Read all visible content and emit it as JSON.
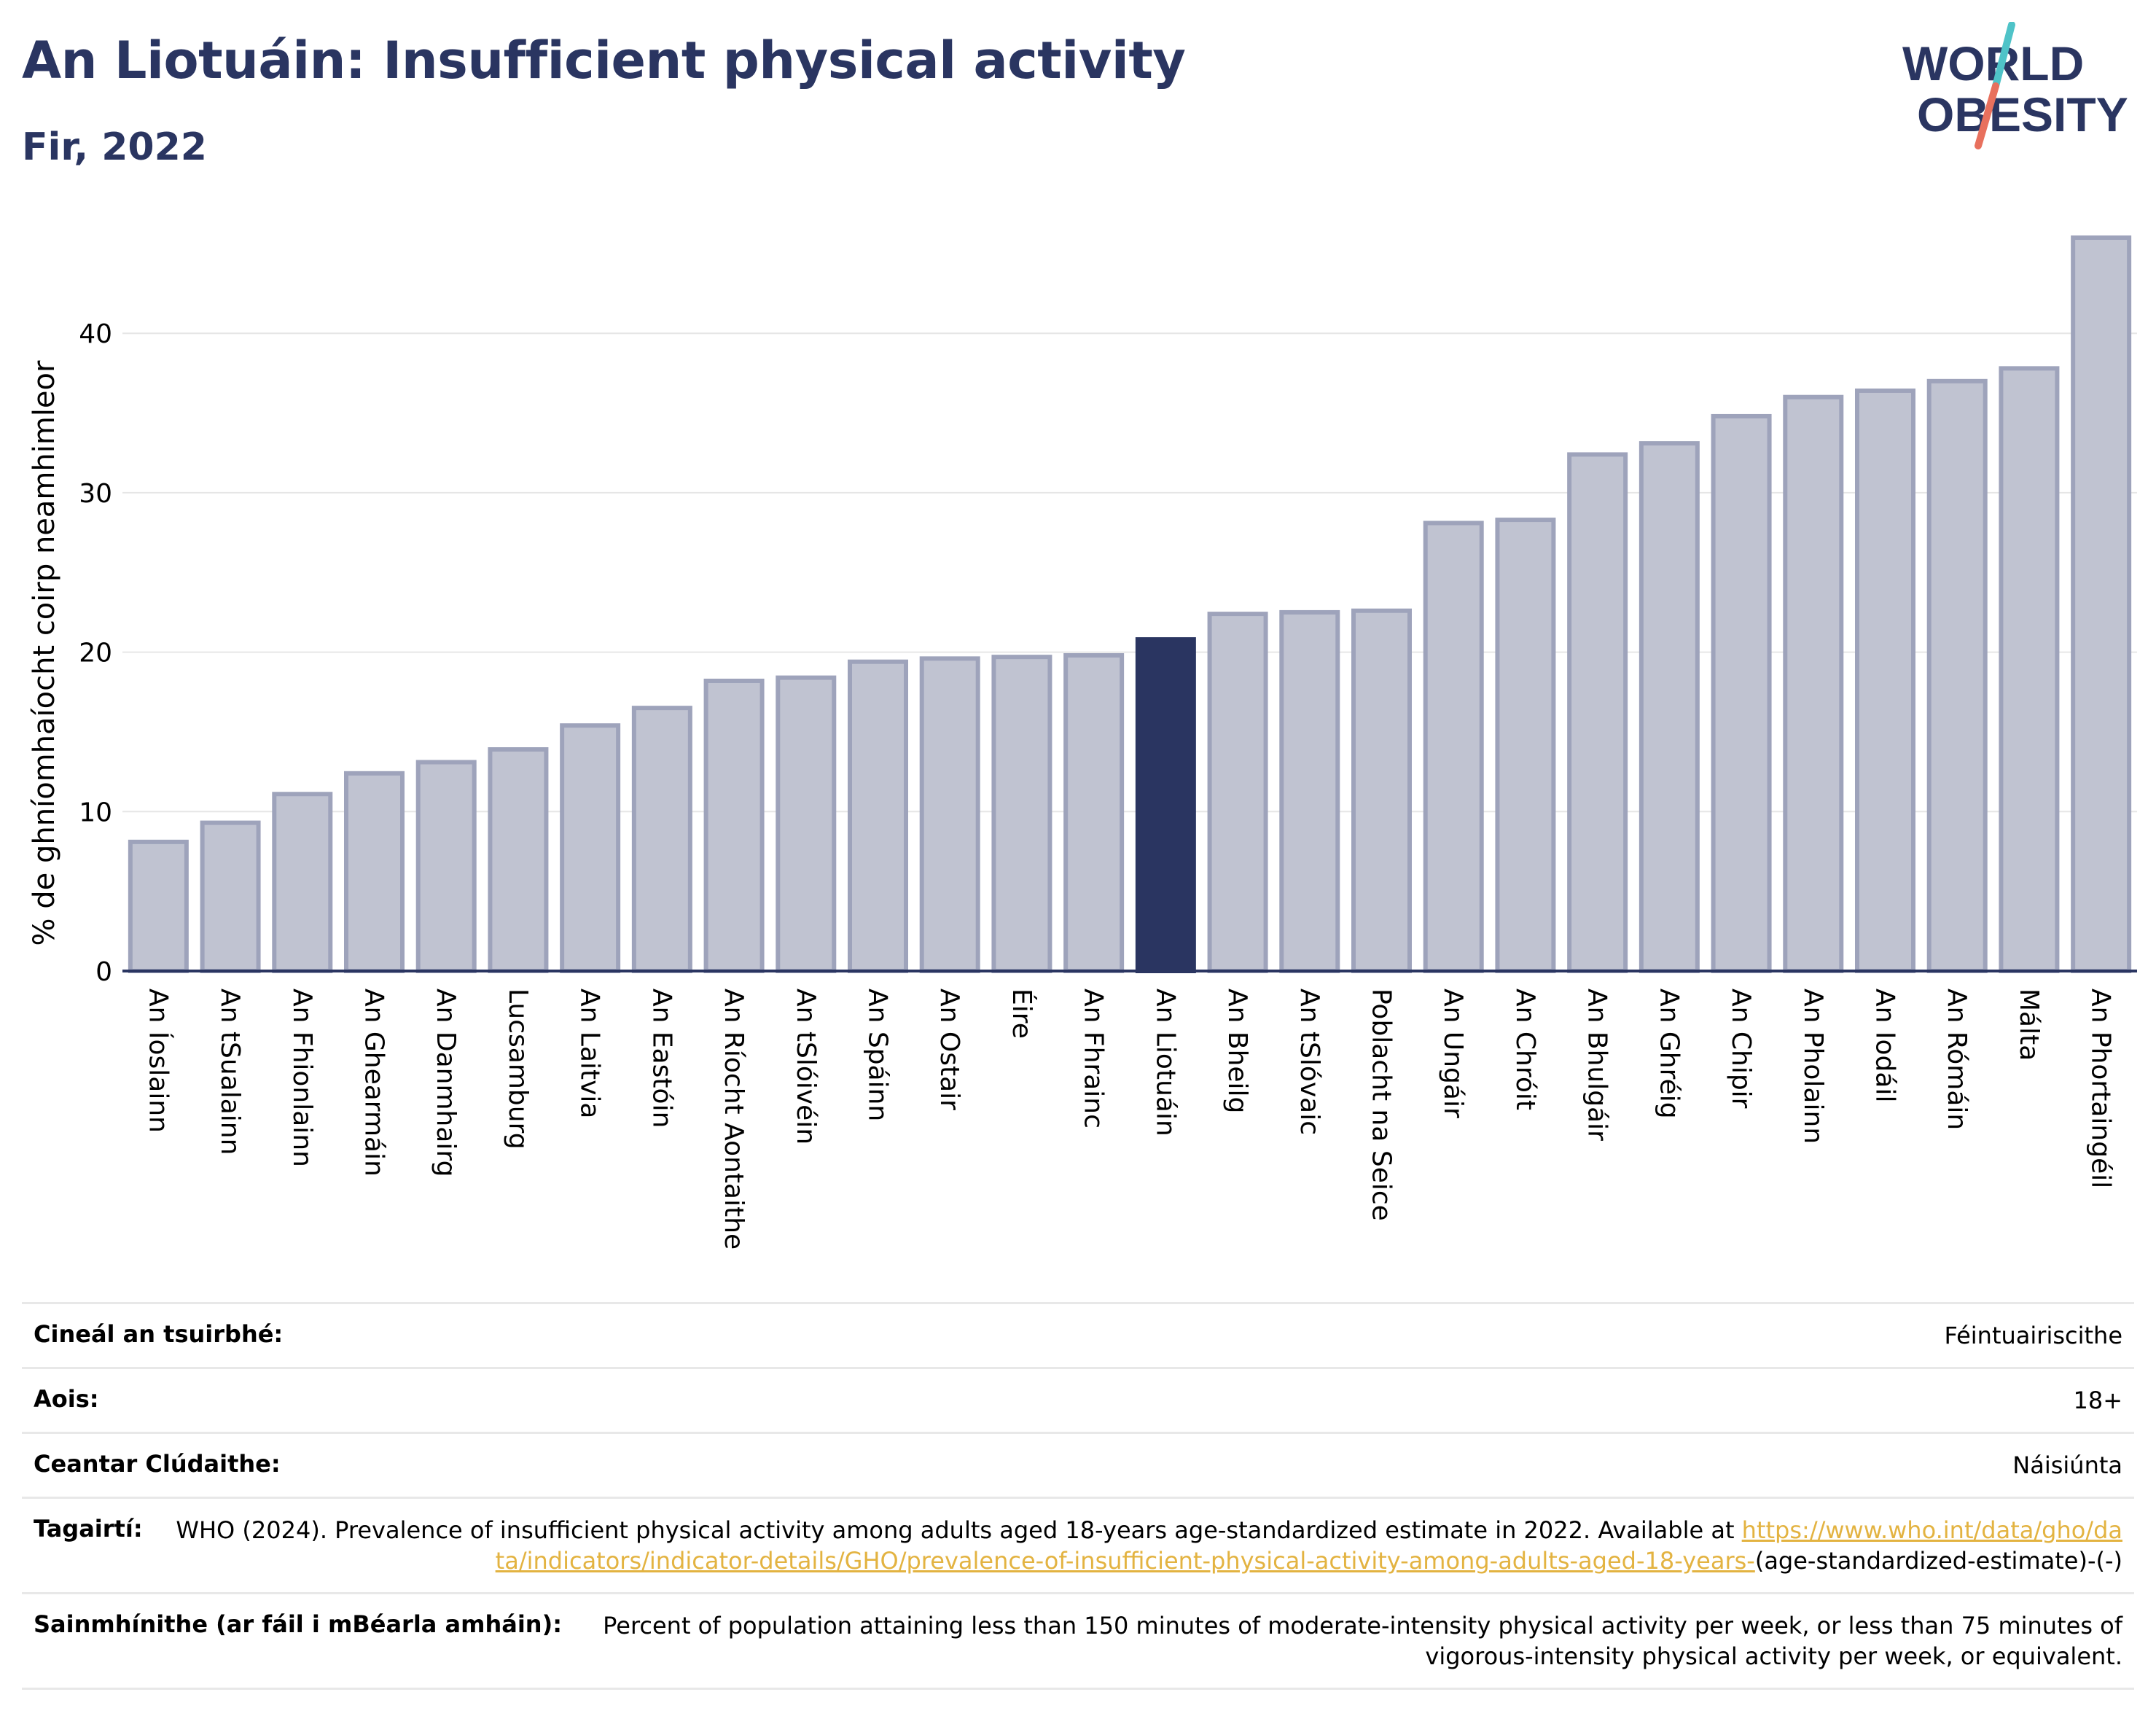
{
  "header": {
    "title": "An Liotuáin: Insufficient physical activity",
    "subtitle": "Fir, 2022"
  },
  "logo": {
    "line1": "WORLD",
    "line2": "OBESITY",
    "colors": [
      "#2a3561",
      "#4fc3c8",
      "#e8705d"
    ]
  },
  "colors": {
    "bar": "#c0c3d1",
    "bar_stroke": "#9ea3bb",
    "highlight": "#2a3561",
    "grid": "#e6e6e6",
    "axis": "#2a3561"
  },
  "chart_data": {
    "type": "bar",
    "title": "An Liotuáin: Insufficient physical activity",
    "ylabel": "% de ghníomhaíocht coirp neamhimleor",
    "xlabel": "",
    "ylim": [
      0,
      46
    ],
    "yticks": [
      0,
      10,
      20,
      30,
      40
    ],
    "grid": true,
    "highlight": "An Liotuáin",
    "categories": [
      "An Íoslainn",
      "An tSualainn",
      "An Fhionlainn",
      "An Ghearmáin",
      "An Danmhairg",
      "Lucsamburg",
      "An Laitvia",
      "An Eastóin",
      "An Ríocht Aontaithe",
      "An tSlóivéin",
      "An Spáinn",
      "An Ostair",
      "Éire",
      "An Fhrainc",
      "An Liotuáin",
      "An Bheilg",
      "An tSlóvaic",
      "Poblacht na Seice",
      "An Ungáir",
      "An Chróit",
      "An Bhulgáir",
      "An Ghréig",
      "An Chipir",
      "An Pholainn",
      "An Iodáil",
      "An Rómáin",
      "Málta",
      "An Phortaingéil"
    ],
    "values": [
      8.1,
      9.3,
      11.1,
      12.4,
      13.1,
      13.9,
      15.4,
      16.5,
      18.2,
      18.4,
      19.4,
      19.6,
      19.7,
      19.8,
      20.8,
      22.4,
      22.5,
      22.6,
      28.1,
      28.3,
      32.4,
      33.1,
      34.8,
      36.0,
      36.4,
      37.0,
      37.8,
      46.0
    ]
  },
  "meta": {
    "survey_type_label": "Cineál an tsuirbhé:",
    "survey_type_value": "Féintuairiscithe",
    "age_label": "Aois:",
    "age_value": "18+",
    "coverage_label": "Ceantar Clúdaithe:",
    "coverage_value": "Náisiúnta",
    "references_label": "Tagairtí:",
    "references_text": "WHO (2024). Prevalence of insufficient physical activity among adults aged 18-years age-standardized estimate in 2022. Available at",
    "references_link": "https://www.who.int/data/gho/data/indicators/indicator-details/GHO/prevalence-of-insufficient-physical-activity-among-adults-aged-18-years-",
    "references_suffix": "(age-standardized-estimate)-(-)",
    "definitions_label": "Sainmhínithe (ar fáil i mBéarla amháin):",
    "definitions_value": "Percent of population attaining less than 150 minutes of moderate-intensity physical activity per week, or less than 75 minutes of vigorous-intensity physical activity per week, or equivalent."
  }
}
